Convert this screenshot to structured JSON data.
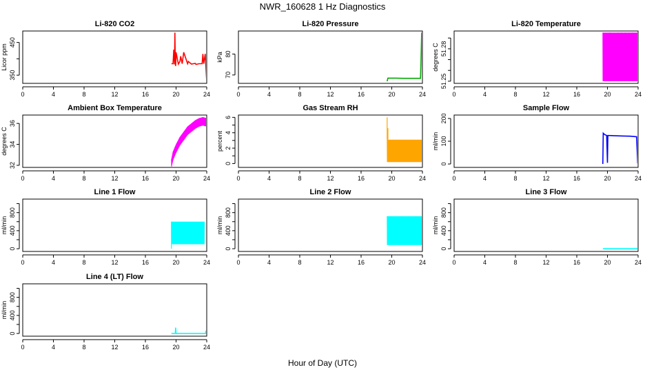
{
  "page": {
    "title": "NWR_160628  1 Hz Diagnostics",
    "xlabel": "Hour of Day (UTC)"
  },
  "chart_data": [
    {
      "type": "line",
      "title": "Li-820 CO2",
      "ylabel": "Licor ppm",
      "color": "#ff0000",
      "xlim": [
        0,
        24
      ],
      "xticks": [
        0,
        4,
        8,
        12,
        16,
        20,
        24
      ],
      "ylim": [
        325,
        485
      ],
      "yticks": [
        350,
        400,
        450
      ],
      "ytick_labels": [
        "350",
        "",
        "450"
      ],
      "x": [
        19.4,
        19.6,
        19.7,
        19.8,
        19.85,
        19.9,
        19.95,
        20.0,
        20.3,
        20.5,
        20.6,
        20.8,
        21.0,
        21.5,
        21.6,
        22.0,
        22.5,
        22.6,
        23.0,
        23.4,
        23.5,
        23.6,
        23.8,
        23.9,
        24.0
      ],
      "y": [
        385,
        385,
        428,
        383,
        480,
        388,
        378,
        420,
        384,
        392,
        408,
        385,
        420,
        385,
        392,
        384,
        386,
        383,
        385,
        385,
        415,
        385,
        415,
        370,
        330
      ]
    },
    {
      "type": "line",
      "title": "Li-820 Pressure",
      "ylabel": "kPa",
      "color": "#00aa00",
      "xlim": [
        0,
        24
      ],
      "xticks": [
        0,
        4,
        8,
        12,
        16,
        20,
        24
      ],
      "ylim": [
        66,
        91
      ],
      "yticks": [
        70,
        80
      ],
      "ytick_labels": [
        "70",
        "80"
      ],
      "x": [
        19.4,
        19.5,
        19.6,
        20.5,
        21.5,
        22.5,
        23.5,
        23.75,
        23.8,
        23.9,
        24.0
      ],
      "y": [
        67,
        68.5,
        68.5,
        68.5,
        68.4,
        68.4,
        68.4,
        68.4,
        75,
        90,
        90
      ]
    },
    {
      "type": "line",
      "title": "Li-820 Temperature",
      "ylabel": "degrees C",
      "color": "#ff00ff",
      "xlim": [
        0,
        24
      ],
      "xticks": [
        0,
        4,
        8,
        12,
        16,
        20,
        24
      ],
      "ylim": [
        51.248,
        51.2965
      ],
      "yticks": [
        51.25,
        51.26,
        51.27,
        51.28,
        51.29
      ],
      "ytick_labels": [
        "51.25",
        "",
        "",
        "51.28",
        ""
      ],
      "band": {
        "x_start": 19.4,
        "x_end": 24.0,
        "y_low": 51.25,
        "y_high": 51.295
      },
      "spikes": [
        {
          "x": 20.3,
          "y": 51.25
        },
        {
          "x": 21.4,
          "y": 51.25
        },
        {
          "x": 21.8,
          "y": 51.25
        },
        {
          "x": 22.3,
          "y": 51.25
        },
        {
          "x": 22.8,
          "y": 51.25
        },
        {
          "x": 23.3,
          "y": 51.25
        }
      ]
    },
    {
      "type": "line",
      "title": "Ambient Box Temperature",
      "ylabel": "degrees C",
      "color": "#ff00ff",
      "xlim": [
        0,
        24
      ],
      "xticks": [
        0,
        4,
        8,
        12,
        16,
        20,
        24
      ],
      "ylim": [
        31.8,
        36.8
      ],
      "yticks": [
        32,
        34,
        36
      ],
      "ytick_labels": [
        "32",
        "34",
        "36"
      ],
      "x": [
        19.4,
        19.6,
        20.0,
        20.5,
        21.0,
        21.5,
        22.0,
        22.5,
        23.0,
        23.5,
        24.0
      ],
      "y": [
        32.2,
        32.9,
        33.6,
        34.3,
        34.8,
        35.3,
        35.6,
        35.9,
        36.1,
        36.2,
        36.1
      ],
      "spread": 0.8
    },
    {
      "type": "line",
      "title": "Gas Stream RH",
      "ylabel": "percent",
      "color": "#ffa500",
      "xlim": [
        0,
        24
      ],
      "xticks": [
        0,
        4,
        8,
        12,
        16,
        20,
        24
      ],
      "ylim": [
        -0.5,
        6.3
      ],
      "yticks": [
        0,
        1,
        2,
        3,
        4,
        5,
        6
      ],
      "ytick_labels": [
        "0",
        "",
        "2",
        "",
        "4",
        "",
        "6"
      ],
      "band": {
        "x_start": 19.4,
        "x_end": 24.0,
        "y_low": 0.2,
        "y_high": 3.1
      },
      "spikes": [
        {
          "x": 19.4,
          "y": 6.0
        },
        {
          "x": 19.5,
          "y": 4.6
        }
      ]
    },
    {
      "type": "line",
      "title": "Sample Flow",
      "ylabel": "ml/min",
      "color": "#0000ff",
      "xlim": [
        0,
        24
      ],
      "xticks": [
        0,
        4,
        8,
        12,
        16,
        20,
        24
      ],
      "ylim": [
        -15,
        215
      ],
      "yticks": [
        0,
        100,
        200
      ],
      "ytick_labels": [
        "0",
        "100",
        "200"
      ],
      "x": [
        19.4,
        19.45,
        19.6,
        19.9,
        20.0,
        20.05,
        20.2,
        21.0,
        22.0,
        23.0,
        23.7,
        23.8,
        23.95,
        24.0
      ],
      "y": [
        0,
        135,
        130,
        125,
        5,
        125,
        125,
        124,
        123,
        122,
        120,
        120,
        5,
        5
      ]
    },
    {
      "type": "line",
      "title": "Line 1 Flow",
      "ylabel": "ml/min",
      "color": "#00ffff",
      "xlim": [
        0,
        24
      ],
      "xticks": [
        0,
        4,
        8,
        12,
        16,
        20,
        24
      ],
      "ylim": [
        -60,
        1100
      ],
      "yticks": [
        0,
        200,
        400,
        600,
        800,
        1000
      ],
      "ytick_labels": [
        "0",
        "",
        "400",
        "",
        "800",
        ""
      ],
      "band": {
        "x_start": 19.4,
        "x_end": 23.7,
        "y_low": 100,
        "y_high": 600
      },
      "spikes": [
        {
          "x": 19.4,
          "y": 0
        },
        {
          "x": 24.0,
          "y": 500
        }
      ]
    },
    {
      "type": "line",
      "title": "Line 2 Flow",
      "ylabel": "ml/min",
      "color": "#00ffff",
      "xlim": [
        0,
        24
      ],
      "xticks": [
        0,
        4,
        8,
        12,
        16,
        20,
        24
      ],
      "ylim": [
        -60,
        1100
      ],
      "yticks": [
        0,
        200,
        400,
        600,
        800,
        1000
      ],
      "ytick_labels": [
        "0",
        "",
        "400",
        "",
        "800",
        ""
      ],
      "band": {
        "x_start": 19.4,
        "x_end": 24.0,
        "y_low": 80,
        "y_high": 720
      },
      "spikes": [
        {
          "x": 20.0,
          "y": 500
        },
        {
          "x": 20.6,
          "y": 420
        },
        {
          "x": 21.4,
          "y": 470
        },
        {
          "x": 22.2,
          "y": 500
        },
        {
          "x": 23.2,
          "y": 520
        }
      ]
    },
    {
      "type": "line",
      "title": "Line 3 Flow",
      "ylabel": "ml/min",
      "color": "#00ffff",
      "xlim": [
        0,
        24
      ],
      "xticks": [
        0,
        4,
        8,
        12,
        16,
        20,
        24
      ],
      "ylim": [
        -60,
        1100
      ],
      "yticks": [
        0,
        200,
        400,
        600,
        800,
        1000
      ],
      "ytick_labels": [
        "0",
        "",
        "400",
        "",
        "800",
        ""
      ],
      "x": [
        19.4,
        24.0
      ],
      "y": [
        0,
        0
      ]
    },
    {
      "type": "line",
      "title": "Line 4 (LT) Flow",
      "ylabel": "ml/min",
      "color": "#00ffff",
      "xlim": [
        0,
        24
      ],
      "xticks": [
        0,
        4,
        8,
        12,
        16,
        20,
        24
      ],
      "ylim": [
        -60,
        1100
      ],
      "yticks": [
        0,
        200,
        400,
        600,
        800,
        1000
      ],
      "ytick_labels": [
        "0",
        "",
        "400",
        "",
        "800",
        ""
      ],
      "x": [
        19.4,
        19.9,
        19.95,
        20.0,
        20.05,
        23.85,
        23.9,
        23.95,
        24.0
      ],
      "y": [
        0,
        0,
        130,
        0,
        0,
        0,
        60,
        0,
        0
      ]
    }
  ]
}
